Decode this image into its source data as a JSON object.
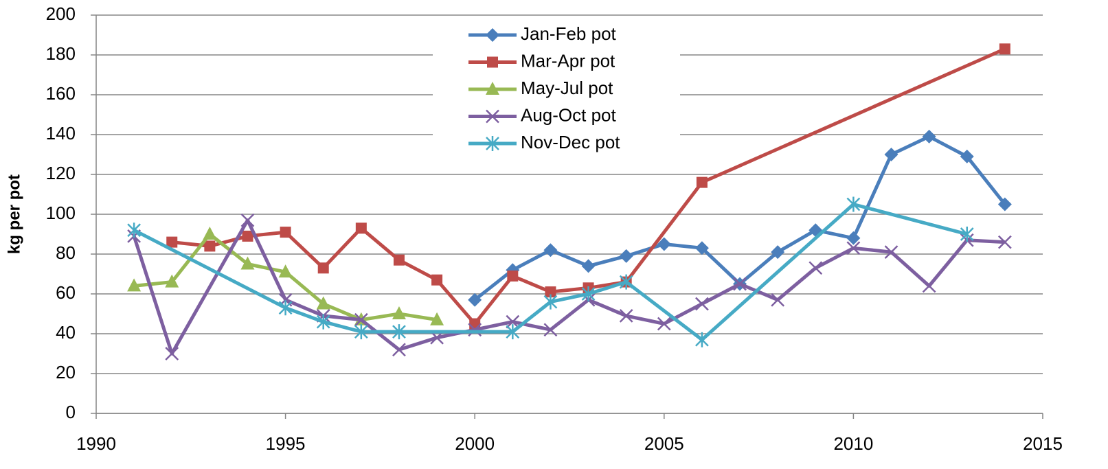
{
  "chart_data": {
    "type": "line",
    "y_label": "kg per pot",
    "xlim": [
      1990,
      2015
    ],
    "xticks": [
      1990,
      1995,
      2000,
      2005,
      2010,
      2015
    ],
    "ylim": [
      0,
      200
    ],
    "yticks": [
      0,
      20,
      40,
      60,
      80,
      100,
      120,
      140,
      160,
      180,
      200
    ],
    "grid": true,
    "legend": "top",
    "series": [
      {
        "name": "Jan-Feb pot",
        "color": "#4a7ebb",
        "marker": "diamond",
        "x": [
          2000,
          2001,
          2002,
          2003,
          2004,
          2005,
          2006,
          2007,
          2008,
          2009,
          2010,
          2011,
          2012,
          2013,
          2014
        ],
        "values": [
          57,
          72,
          82,
          74,
          79,
          85,
          83,
          65,
          81,
          92,
          88,
          130,
          139,
          129,
          105
        ]
      },
      {
        "name": "Mar-Apr pot",
        "color": "#be4b48",
        "marker": "square",
        "x": [
          1992,
          1993,
          1994,
          1995,
          1996,
          1997,
          1998,
          1999,
          2000,
          2001,
          2002,
          2003,
          2004,
          2006,
          2014
        ],
        "values": [
          86,
          84,
          89,
          91,
          73,
          93,
          77,
          67,
          45,
          69,
          61,
          63,
          66,
          116,
          183
        ]
      },
      {
        "name": "May-Jul pot",
        "color": "#98b954",
        "marker": "triangle",
        "x": [
          1991,
          1992,
          1993,
          1994,
          1995,
          1996,
          1997,
          1998,
          1999
        ],
        "values": [
          64,
          66,
          90,
          75,
          71,
          55,
          47,
          50,
          47
        ]
      },
      {
        "name": "Aug-Oct pot",
        "color": "#7d5fa0",
        "marker": "x",
        "x": [
          1991,
          1992,
          1994,
          1995,
          1996,
          1997,
          1998,
          1999,
          2000,
          2001,
          2002,
          2003,
          2004,
          2005,
          2006,
          2007,
          2008,
          2009,
          2010,
          2011,
          2012,
          2013,
          2014
        ],
        "values": [
          89,
          30,
          97,
          57,
          49,
          47,
          32,
          38,
          42,
          46,
          42,
          57,
          49,
          45,
          55,
          65,
          57,
          73,
          83,
          81,
          64,
          87,
          86
        ]
      },
      {
        "name": "Nov-Dec pot",
        "color": "#46aac5",
        "marker": "star",
        "x": [
          1991,
          1995,
          1996,
          1997,
          1998,
          2001,
          2002,
          2003,
          2004,
          2006,
          2010,
          2013
        ],
        "values": [
          92,
          53,
          46,
          41,
          41,
          41,
          56,
          60,
          66,
          37,
          105,
          90
        ]
      }
    ]
  }
}
